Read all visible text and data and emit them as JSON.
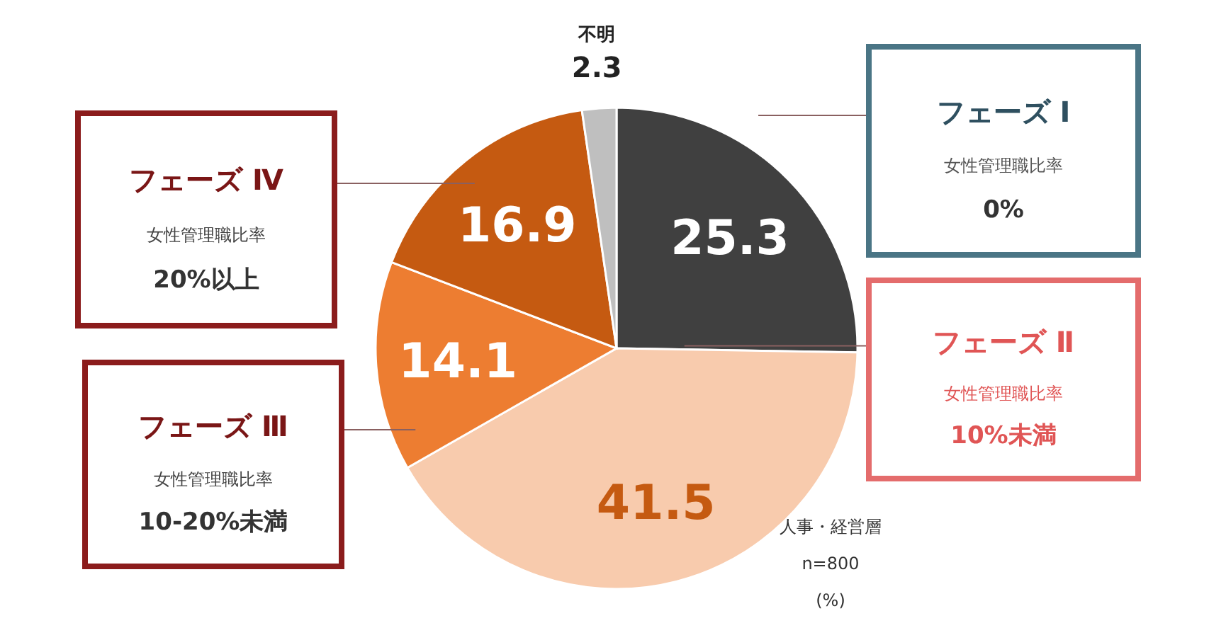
{
  "chart_data": {
    "type": "pie",
    "categories": [
      "フェーズ Ⅰ",
      "フェーズ Ⅱ",
      "フェーズ Ⅲ",
      "フェーズ Ⅳ",
      "不明"
    ],
    "values": [
      25.3,
      41.5,
      14.1,
      16.9,
      2.3
    ],
    "colors": [
      "#404040",
      "#f8cbad",
      "#ed7d31",
      "#c55a11",
      "#bfbfbf"
    ],
    "data_labels": true,
    "annotations": [
      "女性管理職比率",
      "0%",
      "女性管理職比率",
      "10%未満",
      "女性管理職比率",
      "10-20%未満",
      "女性管理職比率",
      "20%以上",
      "人事・経営層",
      "n=800",
      "(%)"
    ]
  }
}
